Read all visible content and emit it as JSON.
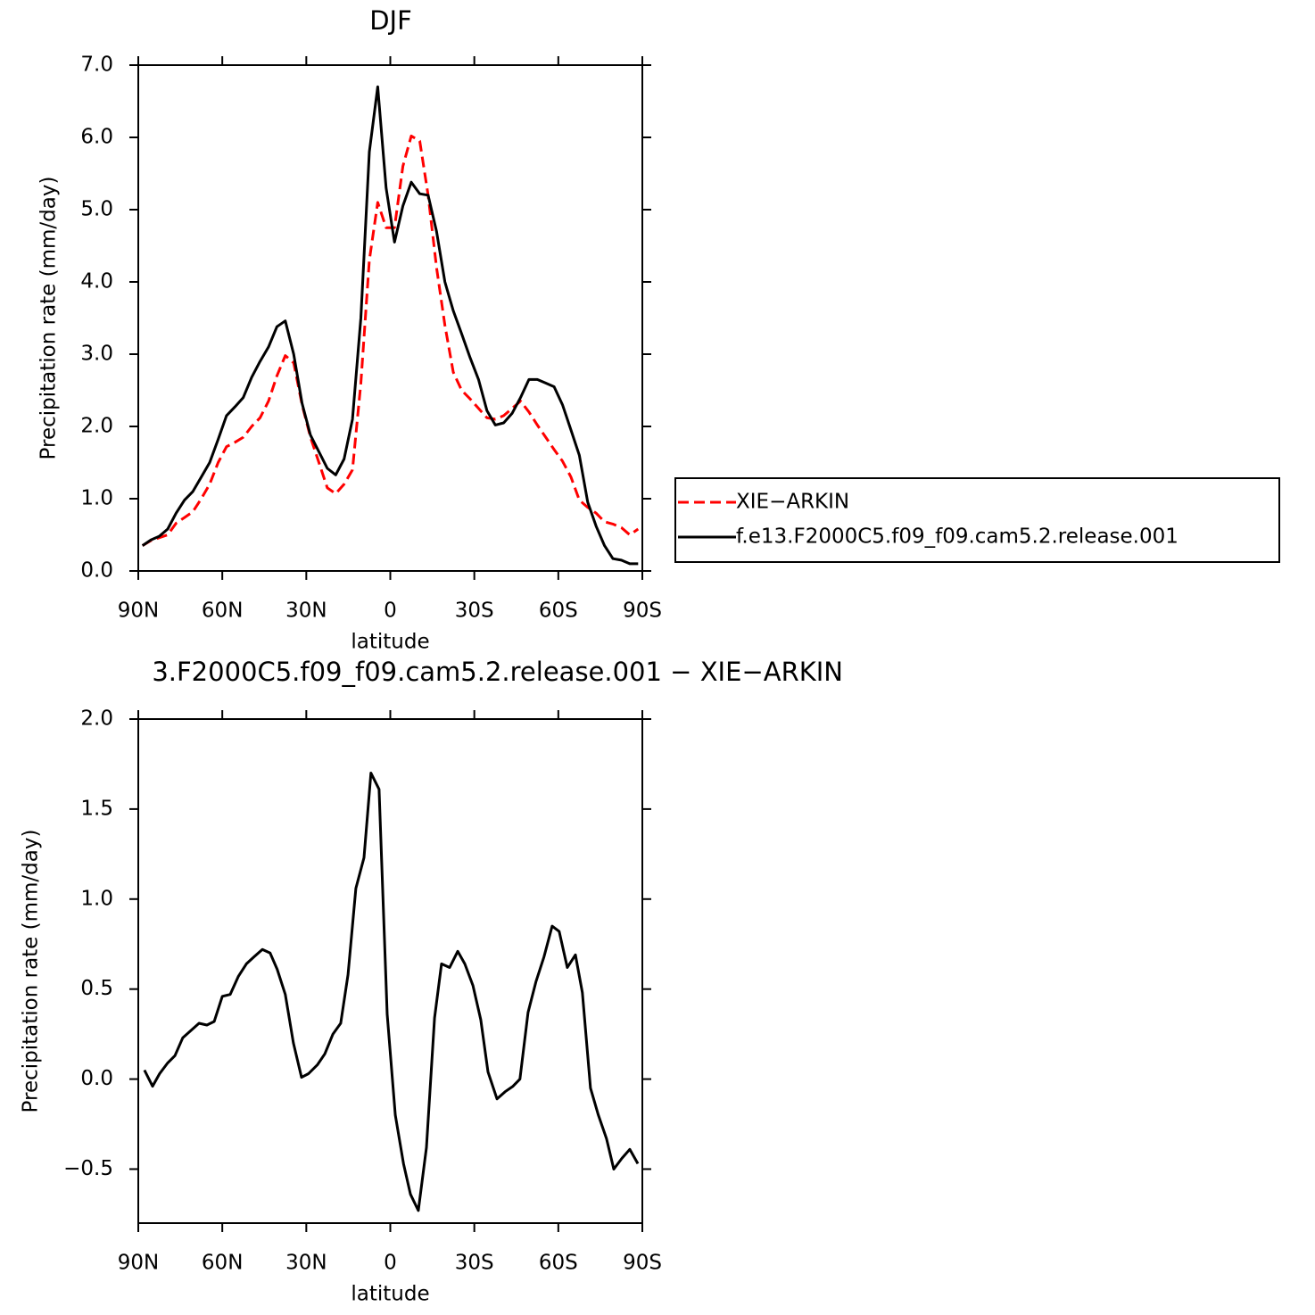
{
  "chart_data": [
    {
      "type": "line",
      "title": "DJF",
      "xlabel": "latitude",
      "ylabel": "Precipitation rate (mm/day)",
      "x": [
        88.5,
        85.5,
        82.5,
        79.5,
        76.5,
        73.5,
        70.5,
        67.5,
        64.5,
        61.5,
        58.5,
        55.5,
        52.5,
        49.5,
        46.5,
        43.5,
        40.5,
        37.5,
        34.5,
        31.5,
        28.5,
        25.5,
        22.5,
        19.5,
        16.5,
        13.5,
        10.5,
        7.5,
        4.5,
        1.5,
        -1.5,
        -4.5,
        -7.5,
        -10.5,
        -13.5,
        -16.5,
        -19.5,
        -22.5,
        -25.5,
        -28.5,
        -31.5,
        -34.5,
        -37.5,
        -40.5,
        -43.5,
        -46.5,
        -49.5,
        -52.5,
        -55.5,
        -58.5,
        -61.5,
        -64.5,
        -67.5,
        -70.5,
        -73.5,
        -76.5,
        -79.5,
        -82.5,
        -85.5,
        -88.5
      ],
      "series": [
        {
          "name": "XIE−ARKIN",
          "color": "#ff0000",
          "dash": "dashed",
          "values": [
            0.35,
            0.42,
            0.46,
            0.5,
            0.66,
            0.74,
            0.82,
            1.0,
            1.2,
            1.5,
            1.72,
            1.78,
            1.85,
            2.0,
            2.12,
            2.35,
            2.7,
            2.98,
            2.88,
            2.3,
            1.85,
            1.5,
            1.15,
            1.07,
            1.2,
            1.4,
            2.6,
            4.3,
            5.1,
            4.75,
            4.75,
            5.6,
            6.02,
            5.95,
            5.2,
            4.2,
            3.4,
            2.75,
            2.5,
            2.38,
            2.25,
            2.12,
            2.1,
            2.15,
            2.25,
            2.35,
            2.2,
            2.02,
            1.85,
            1.68,
            1.52,
            1.3,
            0.98,
            0.88,
            0.8,
            0.68,
            0.65,
            0.6,
            0.5,
            0.58
          ]
        },
        {
          "name": "f.e13.F2000C5.f09_f09.cam5.2.release.001",
          "color": "#000000",
          "dash": "solid",
          "values": [
            0.35,
            0.43,
            0.48,
            0.58,
            0.8,
            0.98,
            1.1,
            1.3,
            1.5,
            1.82,
            2.15,
            2.27,
            2.4,
            2.68,
            2.9,
            3.1,
            3.38,
            3.46,
            3.0,
            2.32,
            1.88,
            1.65,
            1.42,
            1.33,
            1.55,
            2.1,
            3.5,
            5.8,
            6.7,
            5.3,
            4.55,
            5.05,
            5.38,
            5.22,
            5.2,
            4.7,
            4.0,
            3.6,
            3.28,
            2.95,
            2.65,
            2.22,
            2.02,
            2.05,
            2.18,
            2.4,
            2.65,
            2.65,
            2.6,
            2.55,
            2.3,
            1.95,
            1.6,
            0.95,
            0.62,
            0.35,
            0.17,
            0.15,
            0.1,
            0.1
          ]
        }
      ],
      "xlim": [
        90,
        -90
      ],
      "xticks": [
        {
          "value": 90,
          "label": "90N"
        },
        {
          "value": 60,
          "label": "60N"
        },
        {
          "value": 30,
          "label": "30N"
        },
        0,
        {
          "value": -30,
          "label": "30S"
        },
        {
          "value": -60,
          "label": "60S"
        },
        {
          "value": -90,
          "label": "90S"
        }
      ],
      "ylim": [
        0,
        7
      ],
      "yticks": [
        {
          "value": 0,
          "label": "0.0"
        },
        {
          "value": 1,
          "label": "1.0"
        },
        {
          "value": 2,
          "label": "2.0"
        },
        {
          "value": 3,
          "label": "3.0"
        },
        {
          "value": 4,
          "label": "4.0"
        },
        {
          "value": 5,
          "label": "5.0"
        },
        {
          "value": 6,
          "label": "6.0"
        },
        {
          "value": 7,
          "label": "7.0"
        }
      ],
      "legend": "right"
    },
    {
      "type": "line",
      "title": "3.F2000C5.f09_f09.cam5.2.release.001 − XIE−ARKIN",
      "xlabel": "latitude",
      "ylabel": "Precipitation rate (mm/day)",
      "x": [
        87.8,
        84.9,
        82.4,
        79.5,
        76.9,
        74.1,
        71.2,
        68.3,
        65.5,
        62.9,
        60.0,
        57.2,
        54.3,
        51.4,
        48.6,
        45.7,
        42.9,
        40.4,
        37.5,
        34.6,
        31.7,
        29.2,
        26.0,
        23.4,
        20.5,
        17.7,
        15.1,
        12.3,
        9.4,
        6.9,
        4.0,
        1.1,
        -1.8,
        -4.7,
        -7.2,
        -10.0,
        -12.9,
        -15.8,
        -18.3,
        -21.2,
        -24.1,
        -26.6,
        -29.5,
        -32.3,
        -34.9,
        -38.1,
        -41.0,
        -43.8,
        -46.3,
        -49.2,
        -52.0,
        -54.9,
        -57.8,
        -60.3,
        -63.2,
        -66.1,
        -68.6,
        -71.5,
        -74.3,
        -77.2,
        -79.8,
        -82.7,
        -85.5,
        -88.4
      ],
      "color": "#000000",
      "values": [
        0.05,
        -0.04,
        0.03,
        0.09,
        0.13,
        0.23,
        0.27,
        0.31,
        0.3,
        0.32,
        0.46,
        0.47,
        0.57,
        0.64,
        0.68,
        0.72,
        0.7,
        0.61,
        0.47,
        0.2,
        0.01,
        0.03,
        0.08,
        0.14,
        0.25,
        0.31,
        0.58,
        1.06,
        1.23,
        1.7,
        1.61,
        0.36,
        -0.2,
        -0.47,
        -0.64,
        -0.73,
        -0.38,
        0.34,
        0.64,
        0.62,
        0.71,
        0.64,
        0.52,
        0.33,
        0.04,
        -0.11,
        -0.07,
        -0.04,
        0.0,
        0.37,
        0.54,
        0.68,
        0.85,
        0.82,
        0.62,
        0.69,
        0.48,
        -0.05,
        -0.2,
        -0.33,
        -0.5,
        -0.44,
        -0.39,
        -0.47
      ],
      "xlim": [
        90,
        -90
      ],
      "xticks": [
        {
          "value": 90,
          "label": "90N"
        },
        {
          "value": 60,
          "label": "60N"
        },
        {
          "value": 30,
          "label": "30N"
        },
        0,
        {
          "value": -30,
          "label": "30S"
        },
        {
          "value": -60,
          "label": "60S"
        },
        {
          "value": -90,
          "label": "90S"
        }
      ],
      "ylim": [
        -0.8,
        2.0
      ],
      "yticks": [
        {
          "value": -0.5,
          "label": "−0.5"
        },
        {
          "value": 0,
          "label": "0.0"
        },
        {
          "value": 0.5,
          "label": "0.5"
        },
        {
          "value": 1,
          "label": "1.0"
        },
        {
          "value": 1.5,
          "label": "1.5"
        },
        {
          "value": 2,
          "label": "2.0"
        }
      ]
    }
  ]
}
